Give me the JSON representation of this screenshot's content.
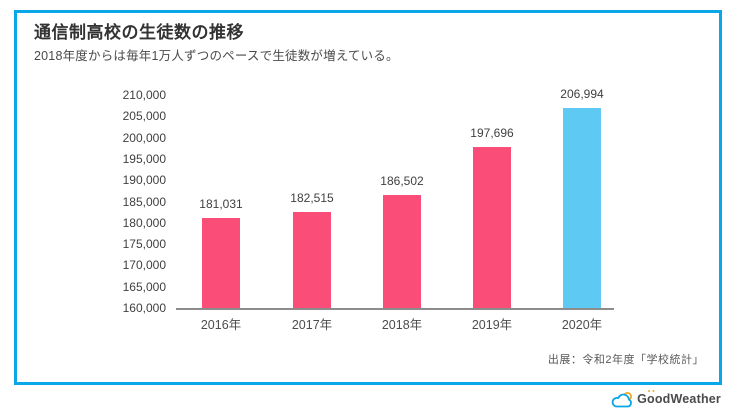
{
  "header": {
    "title": "通信制高校の生徒数の推移",
    "subtitle": "2018年度からは毎年1万人ずつのペースで生徒数が増えている。"
  },
  "chart_data": {
    "type": "bar",
    "title": "通信制高校の生徒数の推移",
    "categories": [
      "2016年",
      "2017年",
      "2018年",
      "2019年",
      "2020年"
    ],
    "values": [
      181031,
      182515,
      186502,
      197696,
      206994
    ],
    "value_labels": [
      "181,031",
      "182,515",
      "186,502",
      "197,696",
      "206,994"
    ],
    "bar_colors": [
      "#FA4E78",
      "#FA4E78",
      "#FA4E78",
      "#FA4E78",
      "#5EC9F2"
    ],
    "base_color": "#FA4E78",
    "highlight_color": "#5EC9F2",
    "xlabel": "",
    "ylabel": "",
    "ylim": [
      160000,
      210000
    ],
    "ytick_step": 5000,
    "yticks": [
      "210,000",
      "205,000",
      "200,000",
      "195,000",
      "190,000",
      "185,000",
      "180,000",
      "175,000",
      "170,000",
      "165,000",
      "160,000"
    ],
    "grid": false,
    "legend": false,
    "axis_color": "#8C8C8C"
  },
  "source": {
    "label": "出展：令和2年度「学校統計」"
  },
  "frame": {
    "border_color": "#0AA7E8"
  },
  "logo": {
    "part1": "G",
    "part2": "oo",
    "part3": "dWeather",
    "brand_blue": "#0AA7E8",
    "brand_orange": "#F7A823"
  }
}
